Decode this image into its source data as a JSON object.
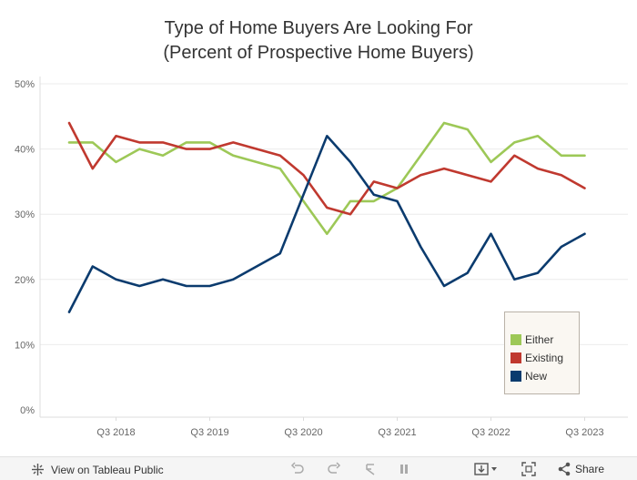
{
  "title_line1": "Type of Home Buyers Are Looking For",
  "title_line2": "(Percent of Prospective Home Buyers)",
  "chart_data": {
    "type": "line",
    "xlabel": "",
    "ylabel": "",
    "ylim": [
      0,
      50
    ],
    "yticks": [
      0,
      10,
      20,
      30,
      40,
      50
    ],
    "ytick_labels": [
      "0%",
      "10%",
      "20%",
      "30%",
      "40%",
      "50%"
    ],
    "x_quarters": [
      "Q1 2018",
      "Q2 2018",
      "Q3 2018",
      "Q4 2018",
      "Q1 2019",
      "Q2 2019",
      "Q3 2019",
      "Q4 2019",
      "Q1 2020",
      "Q2 2020",
      "Q3 2020",
      "Q4 2020",
      "Q1 2021",
      "Q2 2021",
      "Q3 2021",
      "Q4 2021",
      "Q1 2022",
      "Q2 2022",
      "Q3 2022",
      "Q4 2022",
      "Q1 2023",
      "Q2 2023",
      "Q3 2023",
      "Q4 2023"
    ],
    "x_tick_labels": [
      "Q3 2018",
      "Q3 2019",
      "Q3 2020",
      "Q3 2021",
      "Q3 2022",
      "Q3 2023"
    ],
    "grid": true,
    "legend_position": "bottom-right",
    "series": [
      {
        "name": "Either",
        "color": "#9dc857",
        "x": [
          "Q1 2018",
          "Q2 2018",
          "Q3 2018",
          "Q4 2018",
          "Q1 2019",
          "Q2 2019",
          "Q3 2019",
          "Q4 2019",
          "Q2 2020",
          "Q3 2020",
          "Q4 2020",
          "Q1 2021",
          "Q2 2021",
          "Q3 2021",
          "Q4 2021",
          "Q1 2022",
          "Q2 2022",
          "Q3 2022",
          "Q4 2022",
          "Q1 2023",
          "Q2 2023",
          "Q3 2023"
        ],
        "values": [
          41,
          41,
          38,
          40,
          39,
          41,
          41,
          39,
          37,
          32,
          27,
          32,
          32,
          34,
          39,
          44,
          43,
          38,
          41,
          42,
          39,
          39
        ]
      },
      {
        "name": "Existing",
        "color": "#c0392f",
        "x": [
          "Q1 2018",
          "Q2 2018",
          "Q3 2018",
          "Q4 2018",
          "Q1 2019",
          "Q2 2019",
          "Q3 2019",
          "Q4 2019",
          "Q2 2020",
          "Q3 2020",
          "Q4 2020",
          "Q1 2021",
          "Q2 2021",
          "Q3 2021",
          "Q4 2021",
          "Q1 2022",
          "Q2 2022",
          "Q3 2022",
          "Q4 2022",
          "Q1 2023",
          "Q2 2023",
          "Q3 2023"
        ],
        "values": [
          44,
          37,
          42,
          41,
          41,
          40,
          40,
          41,
          39,
          36,
          31,
          30,
          35,
          34,
          36,
          37,
          36,
          35,
          39,
          37,
          36,
          34
        ]
      },
      {
        "name": "New",
        "color": "#0b3b6e",
        "x": [
          "Q1 2018",
          "Q2 2018",
          "Q3 2018",
          "Q4 2018",
          "Q1 2019",
          "Q2 2019",
          "Q3 2019",
          "Q4 2019",
          "Q2 2020",
          "Q3 2020",
          "Q4 2020",
          "Q1 2021",
          "Q2 2021",
          "Q3 2021",
          "Q4 2021",
          "Q1 2022",
          "Q2 2022",
          "Q3 2022",
          "Q4 2022",
          "Q1 2023",
          "Q2 2023",
          "Q3 2023"
        ],
        "values": [
          15,
          22,
          20,
          19,
          20,
          19,
          19,
          20,
          24,
          33,
          42,
          38,
          33,
          32,
          25,
          19,
          21,
          27,
          20,
          21,
          25,
          27
        ]
      }
    ]
  },
  "legend": {
    "items": [
      {
        "label": "Either",
        "color": "#9dc857"
      },
      {
        "label": "Existing",
        "color": "#c0392f"
      },
      {
        "label": "New",
        "color": "#0b3b6e"
      }
    ]
  },
  "footer": {
    "view_label": "View on Tableau Public",
    "share_label": "Share",
    "icons": [
      "tableau-logo-icon",
      "undo-icon",
      "redo-icon",
      "revert-icon",
      "pause-icon",
      "download-icon",
      "fullscreen-icon",
      "share-icon"
    ]
  }
}
